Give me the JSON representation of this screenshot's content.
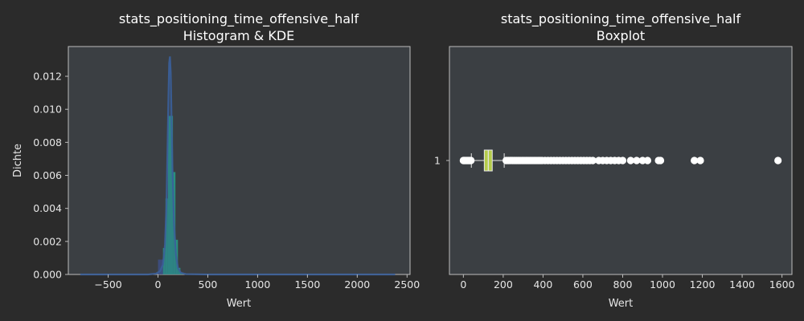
{
  "colors": {
    "figure_bg": "#2b2b2b",
    "axes_bg": "#3b3f43",
    "spine": "#bdbdbd",
    "text": "#e6e6e6",
    "kde_line": "#3b5f9a",
    "hist_fill": "#26a086",
    "hist_dark": "#3d4f86",
    "box_fill": "#b5cc4a",
    "flier": "#ffffff"
  },
  "chart_data": [
    {
      "type": "histogram",
      "title": "stats_positioning_time_offensive_half",
      "subtitle": "Histogram & KDE",
      "xlabel": "Wert",
      "ylabel": "Dichte",
      "xlim": [
        -900,
        2530
      ],
      "ylim": [
        0,
        0.0138
      ],
      "xticks": [
        -500,
        0,
        500,
        1000,
        1500,
        2000,
        2500
      ],
      "xtick_labels": [
        "−500",
        "0",
        "500",
        "1000",
        "1500",
        "2000",
        "2500"
      ],
      "yticks": [
        0,
        0.002,
        0.004,
        0.006,
        0.008,
        0.01,
        0.012
      ],
      "ytick_labels": [
        "0.000",
        "0.002",
        "0.004",
        "0.006",
        "0.008",
        "0.010",
        "0.012"
      ],
      "histogram": {
        "bin_edges": [
          0,
          25,
          50,
          75,
          100,
          125,
          150,
          175,
          200,
          225,
          250
        ],
        "densities": [
          0.0009,
          0.0009,
          0.0016,
          0.0046,
          0.0096,
          0.0096,
          0.0062,
          0.0021,
          0.0004,
          0.0001
        ]
      },
      "kde": {
        "x": [
          -780,
          -300,
          -100,
          -20,
          20,
          50,
          70,
          85,
          95,
          105,
          112,
          120,
          128,
          135,
          145,
          160,
          180,
          200,
          230,
          280,
          500,
          1000,
          2000,
          2380
        ],
        "y": [
          0,
          0,
          0,
          5e-05,
          0.0002,
          0.0006,
          0.0018,
          0.0042,
          0.0075,
          0.0108,
          0.0128,
          0.0132,
          0.0122,
          0.0098,
          0.0065,
          0.0032,
          0.0012,
          0.0004,
          0.0001,
          2e-05,
          0,
          0,
          0,
          0
        ]
      }
    },
    {
      "type": "boxplot",
      "title": "stats_positioning_time_offensive_half",
      "subtitle": "Boxplot",
      "xlabel": "Wert",
      "xlim": [
        -70,
        1650
      ],
      "xticks": [
        0,
        200,
        400,
        600,
        800,
        1000,
        1200,
        1400,
        1600
      ],
      "xtick_labels": [
        "0",
        "200",
        "400",
        "600",
        "800",
        "1000",
        "1200",
        "1400",
        "1600"
      ],
      "ytick_labels": [
        "1"
      ],
      "box": {
        "whisker_low": 40,
        "q1": 105,
        "median": 125,
        "q3": 145,
        "whisker_high": 205
      },
      "fliers": [
        0,
        3,
        6,
        10,
        14,
        18,
        22,
        26,
        30,
        34,
        38,
        215,
        225,
        235,
        245,
        255,
        265,
        275,
        285,
        295,
        305,
        315,
        325,
        335,
        345,
        355,
        365,
        375,
        385,
        395,
        410,
        425,
        440,
        455,
        470,
        485,
        500,
        515,
        530,
        545,
        560,
        575,
        590,
        605,
        620,
        635,
        650,
        680,
        700,
        720,
        740,
        760,
        780,
        800,
        840,
        870,
        900,
        925,
        980,
        990,
        1160,
        1190,
        1580
      ]
    }
  ]
}
